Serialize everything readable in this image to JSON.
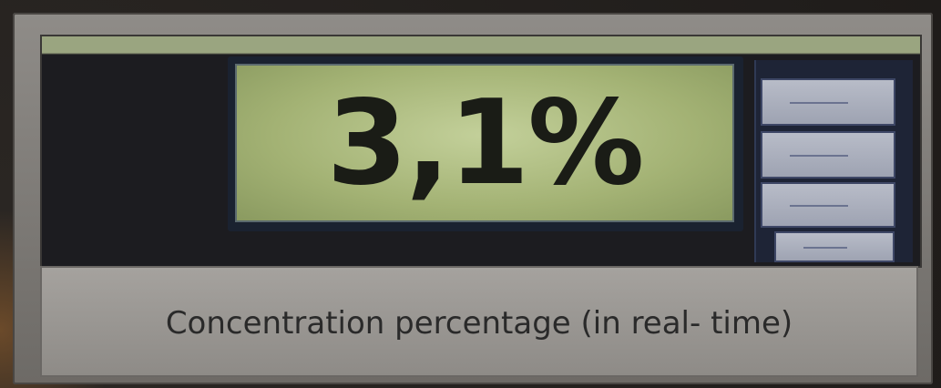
{
  "display": {
    "reading": "3,1%"
  },
  "caption": "Concentration percentage (in real- time)"
}
